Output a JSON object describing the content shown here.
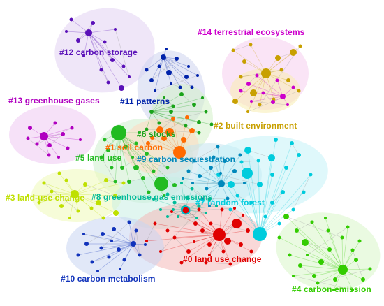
{
  "network": {
    "clusters": [
      {
        "id": 0,
        "label": "#0 land use change",
        "color": "#e00000",
        "hull": "#f4b8b8",
        "nodes": 28
      },
      {
        "id": 1,
        "label": "#1 soil carbon",
        "color": "#ff6a00",
        "hull": "#ffd9bf",
        "nodes": 10
      },
      {
        "id": 2,
        "label": "#2 built environment",
        "color": "#c8a000",
        "hull": "#f7ecb0",
        "nodes": 16
      },
      {
        "id": 3,
        "label": "#3 land-use change",
        "color": "#bfe000",
        "hull": "#eef9b8",
        "nodes": 18
      },
      {
        "id": 4,
        "label": "#4 carbon emission",
        "color": "#33cc00",
        "hull": "#d9f5c9",
        "nodes": 26
      },
      {
        "id": 5,
        "label": "#5 land use",
        "color": "#22bb22",
        "hull": "#cdefcd",
        "nodes": 22
      },
      {
        "id": 6,
        "label": "#6 stocks",
        "color": "#1aa31a",
        "hull": "#d4f0c8",
        "nodes": 14
      },
      {
        "id": 7,
        "label": "#7 random forest",
        "color": "#00ccdd",
        "hull": "#c4f2f7",
        "nodes": 24
      },
      {
        "id": 8,
        "label": "#8 greenhouse gas emissions",
        "color": "#00bb99",
        "hull": "#c8efe4",
        "nodes": 16
      },
      {
        "id": 9,
        "label": "#9 carbon sequestration",
        "color": "#0088bb",
        "hull": "#c4e4ef",
        "nodes": 18
      },
      {
        "id": 10,
        "label": "#10 carbon metabolism",
        "color": "#1133bb",
        "hull": "#c9d6f2",
        "nodes": 18
      },
      {
        "id": 11,
        "label": "#11 patterns",
        "color": "#0022aa",
        "hull": "#cdd3ee",
        "nodes": 14
      },
      {
        "id": 12,
        "label": "#12 carbon storage",
        "color": "#5a10b8",
        "hull": "#e1d2f3",
        "nodes": 14
      },
      {
        "id": 13,
        "label": "#13 greenhouse gases",
        "color": "#b000c0",
        "hull": "#efc8f3",
        "nodes": 12
      },
      {
        "id": 14,
        "label": "#14 terrestrial ecosystems",
        "color": "#cc00cc",
        "hull": "#f6cdef",
        "nodes": 10
      }
    ]
  }
}
